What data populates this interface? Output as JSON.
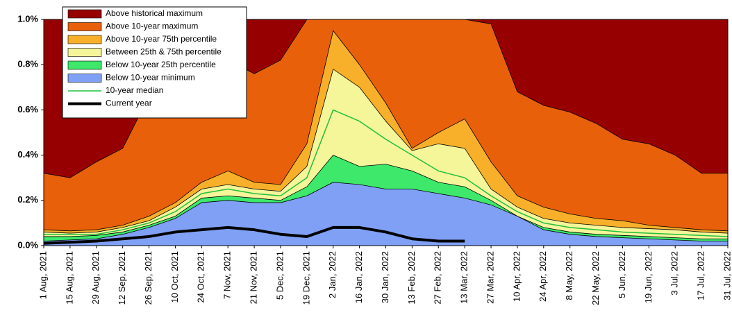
{
  "chart_data": {
    "type": "band",
    "categories": [
      "1 Aug, 2021",
      "15 Aug, 2021",
      "29 Aug, 2021",
      "12 Sep, 2021",
      "26 Sep, 2021",
      "10 Oct, 2021",
      "24 Oct, 2021",
      "7 Nov, 2021",
      "21 Nov, 2021",
      "5 Dec, 2021",
      "19 Dec, 2021",
      "2 Jan, 2022",
      "16 Jan, 2022",
      "30 Jan, 2022",
      "13 Feb, 2022",
      "27 Feb, 2022",
      "13 Mar, 2022",
      "27 Mar, 2022",
      "10 Apr, 2022",
      "24 Apr, 2022",
      "8 May, 2022",
      "22 May, 2022",
      "5 Jun, 2022",
      "19 Jun, 2022",
      "3 Jul, 2022",
      "17 Jul, 2022",
      "31 Jul, 2022"
    ],
    "series": [
      {
        "name": "Above historical maximum",
        "color": "#960000",
        "kind": "band"
      },
      {
        "name": "Above 10-year maximum",
        "color": "#e8600a",
        "kind": "band",
        "values": [
          0.32,
          0.3,
          0.37,
          0.43,
          0.66,
          0.8,
          0.86,
          0.82,
          0.76,
          0.82,
          1.0,
          1.0,
          1.0,
          1.0,
          1.0,
          1.0,
          1.0,
          0.98,
          0.68,
          0.62,
          0.59,
          0.54,
          0.47,
          0.45,
          0.4,
          0.32,
          0.32
        ]
      },
      {
        "name": "Above 10-year 75th percentile",
        "color": "#f8b02a",
        "kind": "band",
        "values": [
          0.07,
          0.065,
          0.07,
          0.09,
          0.13,
          0.19,
          0.28,
          0.33,
          0.28,
          0.27,
          0.45,
          0.95,
          0.8,
          0.63,
          0.43,
          0.5,
          0.56,
          0.37,
          0.22,
          0.17,
          0.14,
          0.12,
          0.11,
          0.09,
          0.08,
          0.07,
          0.065
        ]
      },
      {
        "name": "Between 25th & 75th percentile",
        "color": "#f5f59a",
        "kind": "band",
        "values": [
          0.06,
          0.055,
          0.06,
          0.08,
          0.11,
          0.17,
          0.25,
          0.27,
          0.25,
          0.24,
          0.35,
          0.78,
          0.7,
          0.55,
          0.42,
          0.45,
          0.43,
          0.25,
          0.17,
          0.12,
          0.1,
          0.09,
          0.08,
          0.075,
          0.07,
          0.06,
          0.055
        ]
      },
      {
        "name": "Below 10-year 25th percentile",
        "color": "#3de86a",
        "kind": "band",
        "values": [
          0.04,
          0.04,
          0.045,
          0.06,
          0.09,
          0.13,
          0.21,
          0.22,
          0.21,
          0.2,
          0.26,
          0.4,
          0.35,
          0.36,
          0.33,
          0.28,
          0.26,
          0.2,
          0.13,
          0.08,
          0.06,
          0.05,
          0.045,
          0.04,
          0.035,
          0.03,
          0.03
        ]
      },
      {
        "name": "Below 10-year minimum",
        "color": "#7fa0f5",
        "kind": "band",
        "values": [
          0.02,
          0.025,
          0.03,
          0.05,
          0.08,
          0.12,
          0.19,
          0.2,
          0.19,
          0.19,
          0.22,
          0.28,
          0.27,
          0.25,
          0.25,
          0.23,
          0.21,
          0.18,
          0.13,
          0.07,
          0.05,
          0.04,
          0.035,
          0.03,
          0.025,
          0.02,
          0.02
        ]
      },
      {
        "name": "10-year median",
        "color": "#1fc03c",
        "kind": "line",
        "width": 1.5,
        "values": [
          0.05,
          0.05,
          0.05,
          0.07,
          0.1,
          0.15,
          0.23,
          0.25,
          0.23,
          0.22,
          0.3,
          0.6,
          0.55,
          0.47,
          0.4,
          0.33,
          0.3,
          0.22,
          0.15,
          0.1,
          0.08,
          0.07,
          0.06,
          0.055,
          0.05,
          0.045,
          0.04
        ]
      },
      {
        "name": "Current year",
        "color": "#000000",
        "kind": "line",
        "width": 4,
        "values": [
          0.01,
          0.015,
          0.02,
          0.03,
          0.04,
          0.06,
          0.07,
          0.08,
          0.07,
          0.05,
          0.04,
          0.08,
          0.08,
          0.06,
          0.03,
          0.02,
          0.02,
          null,
          null,
          null,
          null,
          null,
          null,
          null,
          null,
          null,
          null
        ]
      }
    ],
    "ylim": [
      0,
      1.0
    ],
    "yticks": [
      {
        "value": 0,
        "label": "0.0%"
      },
      {
        "value": 0.2,
        "label": "0.2%"
      },
      {
        "value": 0.4,
        "label": "0.4%"
      },
      {
        "value": 0.6,
        "label": "0.6%"
      },
      {
        "value": 0.8,
        "label": "0.8%"
      },
      {
        "value": 1.0,
        "label": "1.0%"
      }
    ]
  }
}
